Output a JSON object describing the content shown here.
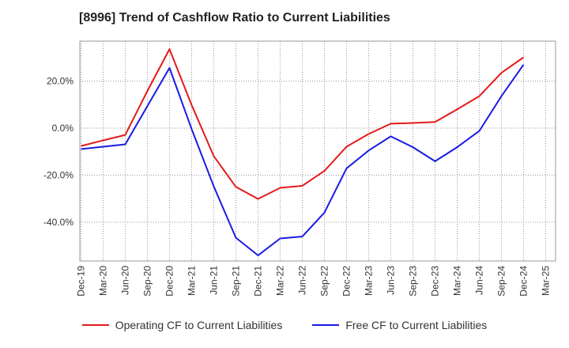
{
  "title": "[8996]  Trend of Cashflow Ratio to Current Liabilities",
  "chart_data": {
    "type": "line",
    "title": "[8996]  Trend of Cashflow Ratio to Current Liabilities",
    "x_tick_labels": [
      "Dec-19",
      "Mar-20",
      "Jun-20",
      "Sep-20",
      "Dec-20",
      "Mar-21",
      "Jun-21",
      "Sep-21",
      "Dec-21",
      "Mar-22",
      "Jun-22",
      "Sep-22",
      "Dec-22",
      "Mar-23",
      "Jun-23",
      "Sep-23",
      "Dec-23",
      "Mar-24",
      "Jun-24",
      "Sep-24",
      "Dec-24",
      "Mar-25"
    ],
    "y_tick_labels": [
      "-40.0%",
      "-20.0%",
      "0.0%",
      "20.0%"
    ],
    "y_ticks": [
      -40,
      -20,
      0,
      20
    ],
    "ylim": [
      -56.5,
      37
    ],
    "grid": true,
    "legend_position": "bottom",
    "series": [
      {
        "name": "Operating CF to Current Liabilities",
        "color": "#e41a1a",
        "x": [
          "Dec-19",
          "Mar-20",
          "Jun-20",
          "Sep-20",
          "Dec-20",
          "Mar-21",
          "Jun-21",
          "Sep-21",
          "Dec-21",
          "Mar-22",
          "Jun-22",
          "Sep-22",
          "Dec-22",
          "Mar-23",
          "Jun-23",
          "Sep-23",
          "Dec-23",
          "Mar-24",
          "Jun-24",
          "Sep-24",
          "Dec-24"
        ],
        "values": [
          -7.6,
          -5.2,
          -2.9,
          15.8,
          33.6,
          9.8,
          -11.9,
          -25.0,
          -30.1,
          -25.4,
          -24.5,
          -18.2,
          -7.9,
          -2.5,
          1.9,
          2.2,
          2.6,
          8.0,
          13.6,
          23.5,
          30.1
        ]
      },
      {
        "name": "Free CF to Current Liabilities",
        "color": "#1a1ae4",
        "x": [
          "Dec-19",
          "Mar-20",
          "Jun-20",
          "Sep-20",
          "Dec-20",
          "Mar-21",
          "Jun-21",
          "Sep-21",
          "Dec-21",
          "Mar-22",
          "Jun-22",
          "Sep-22",
          "Dec-22",
          "Mar-23",
          "Jun-23",
          "Sep-23",
          "Dec-23",
          "Mar-24",
          "Jun-24",
          "Sep-24",
          "Dec-24"
        ],
        "values": [
          -8.9,
          -7.9,
          -6.9,
          9.4,
          25.6,
          -0.4,
          -24.8,
          -46.6,
          -54.1,
          -46.9,
          -46.1,
          -35.9,
          -17.1,
          -9.5,
          -3.5,
          -8.1,
          -14.1,
          -8.1,
          -1.2,
          13.6,
          27.0
        ]
      }
    ]
  }
}
